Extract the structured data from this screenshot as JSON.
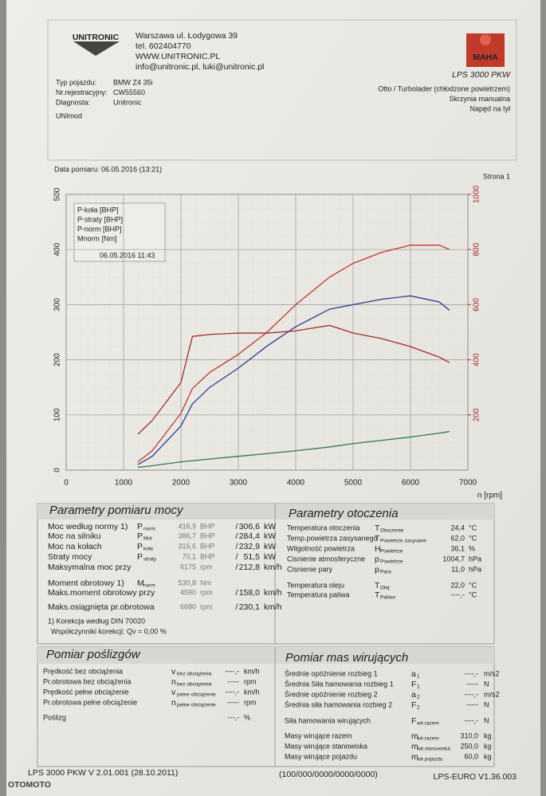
{
  "header": {
    "logo_left": "UNITRONIC",
    "company_lines": [
      "Warszawa ul. Łodygowa 39",
      "tel. 602404770",
      "WWW.UNITRONIC.PL",
      "info@unitronic.pl, luki@unitronic.pl"
    ],
    "logo_right": "MAHA",
    "model": "LPS 3000 PKW"
  },
  "vehicle": {
    "fields": [
      {
        "label": "Typ pojazdu:",
        "value": "BMW Z4 35i"
      },
      {
        "label": "Nr.rejestracyjny:",
        "value": "CW55560"
      },
      {
        "label": "Diagnosta:",
        "value": "Unitronic"
      }
    ],
    "engine": [
      "Otto / Turbolader (chłodzone powietrzem)",
      "Skrzynia manualna",
      "Napęd na tył"
    ],
    "remark": "UNImod"
  },
  "measurement": {
    "date": "Data pomiaru: 06.05.2016 (13:21)",
    "page": "Strona 1"
  },
  "chart_data": {
    "type": "line",
    "x_label": "n [rpm]",
    "legend_note": "06.05.2016 11:43",
    "grid": true,
    "xlim": [
      0,
      7000
    ],
    "xticks": [
      0,
      1000,
      2000,
      3000,
      4000,
      5000,
      6000,
      7000
    ],
    "ylim": [
      0,
      500
    ],
    "yticks": [
      0,
      100,
      200,
      300,
      400,
      500
    ],
    "y2lim": [
      0,
      1000
    ],
    "y2ticks": [
      200,
      400,
      600,
      800,
      1000
    ],
    "x": [
      1250,
      1500,
      2000,
      2200,
      2500,
      3000,
      3500,
      4000,
      4590,
      5000,
      5500,
      6000,
      6500,
      6680
    ],
    "series": [
      {
        "name": "P-koła [BHP]",
        "color": "#2b3a8f",
        "values": [
          10,
          25,
          80,
          120,
          150,
          185,
          225,
          260,
          292,
          300,
          310,
          316,
          305,
          290
        ]
      },
      {
        "name": "P-straty [BHP]",
        "color": "#2e7a4a",
        "values": [
          5,
          8,
          15,
          17,
          20,
          25,
          30,
          35,
          42,
          48,
          54,
          60,
          67,
          70
        ]
      },
      {
        "name": "P-norm [BHP]",
        "color": "#c0392b",
        "values": [
          15,
          35,
          103,
          148,
          177,
          210,
          250,
          300,
          350,
          375,
          395,
          408,
          408,
          400
        ]
      },
      {
        "name": "Mnorm [Nm]",
        "color": "#a52a2a",
        "axis": "y2",
        "values": [
          130,
          180,
          318,
          485,
          492,
          497,
          497,
          505,
          525,
          497,
          477,
          448,
          410,
          390
        ]
      }
    ]
  },
  "power": {
    "title": "Parametry pomiaru mocy",
    "rows": [
      {
        "label": "Moc według normy 1)",
        "sym": "P",
        "sub": "norm",
        "v1": "416,9",
        "u1": "BHP",
        "sep": "/",
        "v2": "306,6",
        "u2": "kW",
        "color": "#c0392b"
      },
      {
        "label": "Moc na silniku",
        "sym": "P",
        "sub": "Mot",
        "v1": "386,7",
        "u1": "BHP",
        "sep": "/",
        "v2": "284,4",
        "u2": "kW",
        "color": "#c0392b"
      },
      {
        "label": "Moc na kołach",
        "sym": "P",
        "sub": "koła",
        "v1": "316,6",
        "u1": "BHP",
        "sep": "/",
        "v2": "232,9",
        "u2": "kW",
        "color": "#2b3a8f"
      },
      {
        "label": "Straty mocy",
        "sym": "P",
        "sub": "straty",
        "v1": "70,1",
        "u1": "BHP",
        "sep": "/",
        "v2": "51,5",
        "u2": "kW",
        "color": "#222222"
      },
      {
        "label": "Maksymalna moc przy",
        "v1": "6175",
        "u1": "rpm",
        "sep": "/",
        "v2": "212,8",
        "u2": "km/h",
        "color": "#222222"
      },
      {
        "label": "Moment obrotowy 1)",
        "sym": "M",
        "sub": "norm",
        "v1": "530,8",
        "u1": "Nm",
        "color": "#c0392b"
      },
      {
        "label": "Maks.moment obrotowy przy",
        "v1": "4590",
        "u1": "rpm",
        "sep": "/",
        "v2": "158,0",
        "u2": "km/h",
        "color": "#222222"
      },
      {
        "label": "Maks.osiągnięta pr.obrotowa",
        "v1": "6680",
        "u1": "rpm",
        "sep": "/",
        "v2": "230,1",
        "u2": "km/h",
        "color": "#222222"
      }
    ],
    "note": "1) Korekcja według DIN 70020",
    "correction": "Współczynniki korekcji: Qv =  0,00 %"
  },
  "environment": {
    "title": "Parametry otoczenia",
    "rows": [
      {
        "label": "Temperatura otoczenia",
        "sym": "T",
        "sub": "Otoczenie",
        "value": "24,4",
        "unit": "°C"
      },
      {
        "label": "Temp.powietrza zasysanego",
        "sym": "T",
        "sub": "Powietrze zasysane",
        "value": "62,0",
        "unit": "°C"
      },
      {
        "label": "Wilgotność powietrza",
        "sym": "H",
        "sub": "Powietrze",
        "value": "36,1",
        "unit": "%"
      },
      {
        "label": "Cisnienie atmosferyczne",
        "sym": "p",
        "sub": "Powietrze",
        "value": "1004,7",
        "unit": "hPa"
      },
      {
        "label": "Cisnienie pary",
        "sym": "p",
        "sub": "Para",
        "value": "11,0",
        "unit": "hPa"
      },
      {
        "label": "Temperatura oleju",
        "sym": "T",
        "sub": "Olej",
        "value": "22,0",
        "unit": "°C"
      },
      {
        "label": "Temperatura paliwa",
        "sym": "T",
        "sub": "Paliwo",
        "value": "----,-",
        "unit": "°C"
      }
    ]
  },
  "slip": {
    "title": "Pomiar poślizgów",
    "rows": [
      {
        "label": "Prędkość bez obciążenia",
        "sym": "v",
        "sub": "bez obciążenia",
        "value": "----,-",
        "unit": "km/h"
      },
      {
        "label": "Pr.obrotowa bez obciążenia",
        "sym": "n",
        "sub": "bez obciążenia",
        "value": "-----",
        "unit": "rpm"
      },
      {
        "label": "Prędkość pełne obciążenie",
        "sym": "v",
        "sub": "pełne obciążenie",
        "value": "----,-",
        "unit": "km/h"
      },
      {
        "label": "Pr.obrotowa pełne obciążenie",
        "sym": "n",
        "sub": "pełne obciążenie",
        "value": "-----",
        "unit": "rpm"
      },
      {
        "label": "Poślizg",
        "value": "---,-",
        "unit": "%"
      }
    ]
  },
  "inertia": {
    "title": "Pomiar mas wirujących",
    "rows": [
      {
        "label": "Średnie opóźnienie rozbieg 1",
        "sym": "a",
        "sub": "1",
        "value": "----,-",
        "unit": "m/s2"
      },
      {
        "label": "Średnia Siła hamowania rozbieg 1",
        "sym": "F",
        "sub": "1",
        "value": "-----",
        "unit": "N"
      },
      {
        "label": "Średnie opóźnienie rozbieg 2",
        "sym": "a",
        "sub": "2",
        "value": "----,-",
        "unit": "m/s2"
      },
      {
        "label": "Średnia siła hamowania rozbieg 2",
        "sym": "F",
        "sub": "2",
        "value": "-----",
        "unit": "N"
      },
      {
        "label": "Siła hamowania wirujących",
        "sym": "F",
        "sub": "wir.razem",
        "value": "----,-",
        "unit": "N"
      },
      {
        "label": "Masy wirujące razem",
        "sym": "m",
        "sub": "wir.razem",
        "value": "310,0",
        "unit": "kg"
      },
      {
        "label": "Masy wirujące stanowiska",
        "sym": "m",
        "sub": "wir.stanowiska",
        "value": "250,0",
        "unit": "kg"
      },
      {
        "label": "Masy wirujące pojazdu",
        "sym": "m",
        "sub": "wir.pojazdu",
        "value": "60,0",
        "unit": "kg"
      }
    ]
  },
  "footer": {
    "left": "LPS 3000 PKW V 2.01.001 (28.10.2011)",
    "center": "(100/000/0000/0000/0000)",
    "right": "LPS-EURO V1.36.003"
  },
  "watermark": "OTOMOTO"
}
